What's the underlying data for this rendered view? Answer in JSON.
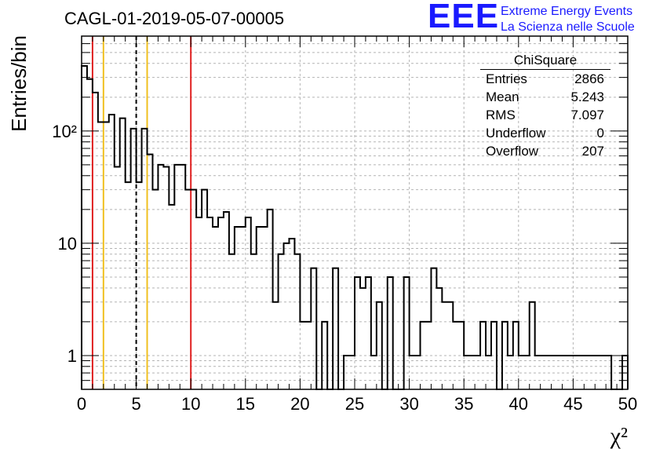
{
  "header": {
    "title": "CAGL-01-2019-05-07-00005"
  },
  "brand": {
    "logo": "EEE",
    "line1": "Extreme Energy Events",
    "line2": "La Scienza nelle Scuole",
    "color": "#1a1aff"
  },
  "stats": {
    "name": "ChiSquare",
    "rows": [
      {
        "label": "Entries",
        "value": "2866"
      },
      {
        "label": "Mean",
        "value": "5.243"
      },
      {
        "label": "RMS",
        "value": "7.097"
      },
      {
        "label": "Underflow",
        "value": "0"
      },
      {
        "label": "Overflow",
        "value": "207"
      }
    ]
  },
  "chart_data": {
    "type": "histogram",
    "title": "CAGL-01-2019-05-07-00005",
    "xlabel": "χ²",
    "ylabel": "Entries/bin",
    "xlim": [
      0,
      50
    ],
    "ylim": [
      0.5,
      700
    ],
    "yscale": "log",
    "grid": true,
    "xticks": [
      "0",
      "5",
      "10",
      "15",
      "20",
      "25",
      "30",
      "35",
      "40",
      "45",
      "50"
    ],
    "yticks": [
      {
        "value": 1,
        "label": "1"
      },
      {
        "value": 10,
        "label": "10"
      },
      {
        "value": 100,
        "label": "10²"
      }
    ],
    "bin_width": 0.5,
    "counts": [
      380,
      290,
      220,
      120,
      120,
      140,
      48,
      130,
      35,
      105,
      35,
      105,
      62,
      30,
      50,
      48,
      22,
      50,
      50,
      30,
      30,
      17,
      30,
      17,
      14,
      17,
      19,
      8,
      14,
      14,
      17,
      8,
      14,
      14,
      20,
      3,
      8,
      10,
      11,
      8,
      2,
      2,
      6,
      0.4,
      2,
      0.4,
      6,
      0.4,
      1,
      1,
      5,
      4,
      5,
      1,
      3,
      0.4,
      5,
      0.4,
      0.4,
      5,
      1,
      1,
      2,
      2,
      6,
      4,
      3,
      3,
      2,
      2,
      1,
      1,
      1,
      2,
      1,
      2,
      0.4,
      2,
      1,
      2,
      1,
      1,
      3,
      1,
      1,
      1,
      1,
      1,
      1,
      1,
      1,
      1,
      1,
      1,
      1,
      1,
      1,
      0.4,
      0.4,
      1
    ],
    "reference_lines": [
      {
        "x": 1,
        "style": "solid",
        "color": "#e02020"
      },
      {
        "x": 2,
        "style": "solid",
        "color": "#f0c020"
      },
      {
        "x": 5,
        "style": "dashed",
        "color": "#000000"
      },
      {
        "x": 6,
        "style": "solid",
        "color": "#f0c020"
      },
      {
        "x": 10,
        "style": "solid",
        "color": "#e02020"
      }
    ]
  }
}
